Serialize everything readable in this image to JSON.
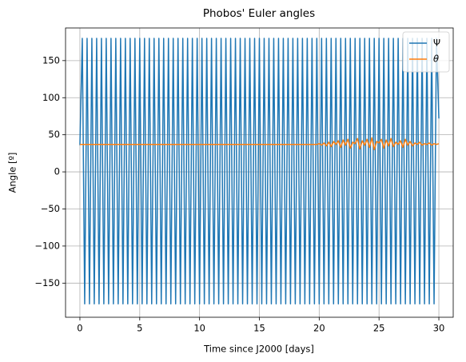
{
  "chart_data": {
    "type": "line",
    "title": "Phobos' Euler angles",
    "xlabel": "Time since J2000 [days]",
    "ylabel": "Angle [º]",
    "x": [
      0,
      0.2,
      0.4,
      0.6,
      0.8,
      1,
      1.2,
      1.4,
      1.6,
      1.8,
      2,
      2.2,
      2.4,
      2.6,
      2.8,
      3,
      3.2,
      3.4,
      3.6,
      3.8,
      4,
      4.2,
      4.4,
      4.6,
      4.8,
      5,
      5.2,
      5.4,
      5.6,
      5.8,
      6,
      6.2,
      6.4,
      6.6,
      6.8,
      7,
      7.2,
      7.4,
      7.6,
      7.8,
      8,
      8.2,
      8.4,
      8.6,
      8.8,
      9,
      9.2,
      9.4,
      9.6,
      9.8,
      10,
      10.2,
      10.4,
      10.6,
      10.8,
      11,
      11.2,
      11.4,
      11.6,
      11.8,
      12,
      12.2,
      12.4,
      12.6,
      12.8,
      13,
      13.2,
      13.4,
      13.6,
      13.8,
      14,
      14.2,
      14.4,
      14.6,
      14.8,
      15,
      15.2,
      15.4,
      15.6,
      15.8,
      16,
      16.2,
      16.4,
      16.6,
      16.8,
      17,
      17.2,
      17.4,
      17.6,
      17.8,
      18,
      18.2,
      18.4,
      18.6,
      18.8,
      19,
      19.2,
      19.4,
      19.6,
      19.8,
      20,
      20.2,
      20.4,
      20.6,
      20.8,
      21,
      21.2,
      21.4,
      21.6,
      21.8,
      22,
      22.2,
      22.4,
      22.6,
      22.8,
      23,
      23.2,
      23.4,
      23.6,
      23.8,
      24,
      24.2,
      24.4,
      24.6,
      24.8,
      25,
      25.2,
      25.4,
      25.6,
      25.8,
      26,
      26.2,
      26.4,
      26.6,
      26.8,
      27,
      27.2,
      27.4,
      27.6,
      27.8,
      28,
      28.2,
      28.4,
      28.6,
      28.8,
      29,
      29.2,
      29.4,
      29.6,
      29.8,
      30
    ],
    "series": [
      {
        "name": "Ψ",
        "color": "#1f77b4",
        "values": [
          36,
          180,
          -178,
          180,
          -178,
          180,
          -178,
          180,
          -178,
          180,
          -178,
          180,
          -178,
          180,
          -178,
          180,
          -178,
          180,
          -178,
          180,
          -178,
          180,
          -178,
          180,
          -178,
          180,
          -178,
          180,
          -178,
          180,
          -178,
          180,
          -178,
          180,
          -178,
          180,
          -178,
          180,
          -178,
          180,
          -178,
          180,
          -178,
          180,
          -178,
          180,
          -178,
          180,
          -178,
          180,
          -178,
          180,
          -178,
          180,
          -178,
          180,
          -178,
          180,
          -178,
          180,
          -178,
          180,
          -178,
          180,
          -178,
          180,
          -178,
          180,
          -178,
          180,
          -178,
          180,
          -178,
          180,
          -178,
          180,
          -178,
          180,
          -178,
          180,
          -178,
          180,
          -178,
          180,
          -178,
          180,
          -178,
          180,
          -178,
          180,
          -178,
          180,
          -178,
          180,
          -178,
          180,
          -178,
          180,
          -178,
          180,
          -178,
          180,
          -178,
          180,
          -178,
          180,
          -178,
          180,
          -178,
          180,
          -178,
          180,
          -178,
          180,
          -178,
          180,
          -178,
          180,
          -178,
          180,
          -178,
          180,
          -178,
          180,
          -178,
          180,
          -178,
          180,
          -178,
          180,
          -178,
          180,
          -178,
          180,
          -178,
          180,
          -178,
          180,
          -178,
          180,
          -178,
          180,
          -178,
          180,
          -178,
          180,
          -178,
          180,
          -178,
          180,
          72
        ]
      },
      {
        "name": "θ",
        "color": "#ff7f0e",
        "values": [
          37,
          37,
          37,
          37,
          37,
          37,
          37,
          37,
          37,
          37,
          37,
          37,
          37,
          37,
          37,
          37,
          37,
          37,
          37,
          37,
          37,
          37,
          37,
          37,
          37,
          37,
          37,
          37,
          37,
          37,
          37,
          37,
          37,
          37,
          37,
          37,
          37,
          37,
          37,
          37,
          37,
          37,
          37,
          37,
          37,
          37,
          37,
          37,
          37,
          37,
          37,
          37,
          37,
          37,
          37,
          37,
          37,
          37,
          37,
          37,
          37,
          37,
          37,
          37,
          37,
          37,
          37,
          37,
          37,
          37,
          37,
          37,
          37,
          37,
          37,
          37,
          37,
          37,
          37,
          37,
          37,
          37,
          37,
          37,
          37,
          37,
          37,
          37,
          37,
          37,
          37,
          37,
          37,
          37,
          37,
          37,
          37,
          37,
          37,
          37,
          38,
          36,
          39,
          35,
          40,
          34,
          41,
          37,
          42,
          33,
          43,
          36,
          44,
          32,
          40,
          38,
          45,
          31,
          42,
          36,
          44,
          33,
          46,
          30,
          41,
          39,
          44,
          32,
          43,
          35,
          45,
          34,
          40,
          37,
          42,
          33,
          44,
          36,
          41,
          35,
          39,
          37,
          40,
          36,
          38,
          37,
          39,
          36,
          38,
          37,
          38
        ]
      }
    ],
    "xlim": [
      -1.2,
      31.2
    ],
    "ylim": [
      -196,
      194
    ],
    "xticks": [
      0,
      5,
      10,
      15,
      20,
      25,
      30
    ],
    "yticks": [
      {
        "value": -150,
        "label": "−150"
      },
      {
        "value": -100,
        "label": "−100"
      },
      {
        "value": -50,
        "label": "−50"
      },
      0,
      50,
      100,
      150
    ],
    "grid": true,
    "legend": "upper right"
  }
}
